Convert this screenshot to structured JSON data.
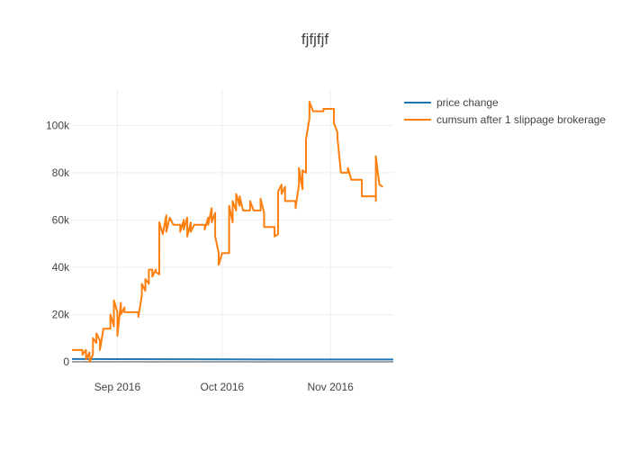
{
  "chart_data": {
    "type": "line",
    "title": "fjfjfjf",
    "xlabel": "",
    "ylabel": "",
    "x_axis": {
      "type": "date",
      "range": [
        "2016-08-19",
        "2016-11-19"
      ],
      "ticks": [
        {
          "date": "2016-09-01",
          "label": "Sep 2016"
        },
        {
          "date": "2016-10-01",
          "label": "Oct 2016"
        },
        {
          "date": "2016-11-01",
          "label": "Nov 2016"
        }
      ]
    },
    "y_axis": {
      "range": [
        0,
        115000
      ],
      "ticks": [
        {
          "value": 0,
          "label": "0"
        },
        {
          "value": 20000,
          "label": "20k"
        },
        {
          "value": 40000,
          "label": "40k"
        },
        {
          "value": 60000,
          "label": "60k"
        },
        {
          "value": 80000,
          "label": "80k"
        },
        {
          "value": 100000,
          "label": "100k"
        }
      ]
    },
    "grid": true,
    "legend_position": "top-right",
    "series": [
      {
        "name": "price change",
        "color": "#1f77b4",
        "points": [
          [
            "2016-08-19",
            1200
          ],
          [
            "2016-09-15",
            1100
          ],
          [
            "2016-10-15",
            1000
          ],
          [
            "2016-11-19",
            1000
          ]
        ]
      },
      {
        "name": "cumsum after 1 slippage brokerage",
        "color": "#ff7f0e",
        "points": [
          [
            "2016-08-19",
            5000
          ],
          [
            "2016-08-22",
            5000
          ],
          [
            "2016-08-22",
            3000
          ],
          [
            "2016-08-23",
            5000
          ],
          [
            "2016-08-23",
            1000
          ],
          [
            "2016-08-24",
            4000
          ],
          [
            "2016-08-24",
            0
          ],
          [
            "2016-08-25",
            3000
          ],
          [
            "2016-08-25",
            10000
          ],
          [
            "2016-08-26",
            8000
          ],
          [
            "2016-08-26",
            12000
          ],
          [
            "2016-08-27",
            9000
          ],
          [
            "2016-08-27",
            5000
          ],
          [
            "2016-08-28",
            14000
          ],
          [
            "2016-08-30",
            14000
          ],
          [
            "2016-08-30",
            20000
          ],
          [
            "2016-08-31",
            15000
          ],
          [
            "2016-08-31",
            26000
          ],
          [
            "2016-09-01",
            21000
          ],
          [
            "2016-09-01",
            11000
          ],
          [
            "2016-09-02",
            25000
          ],
          [
            "2016-09-02",
            20000
          ],
          [
            "2016-09-03",
            23000
          ],
          [
            "2016-09-03",
            21000
          ],
          [
            "2016-09-07",
            21000
          ],
          [
            "2016-09-07",
            19000
          ],
          [
            "2016-09-08",
            28000
          ],
          [
            "2016-09-08",
            33000
          ],
          [
            "2016-09-09",
            30000
          ],
          [
            "2016-09-09",
            35000
          ],
          [
            "2016-09-10",
            33000
          ],
          [
            "2016-09-10",
            39000
          ],
          [
            "2016-09-11",
            39000
          ],
          [
            "2016-09-11",
            36000
          ],
          [
            "2016-09-12",
            39000
          ],
          [
            "2016-09-12",
            38000
          ],
          [
            "2016-09-13",
            37000
          ],
          [
            "2016-09-13",
            59000
          ],
          [
            "2016-09-14",
            54000
          ],
          [
            "2016-09-15",
            62000
          ],
          [
            "2016-09-15",
            55000
          ],
          [
            "2016-09-16",
            61000
          ],
          [
            "2016-09-17",
            58000
          ],
          [
            "2016-09-19",
            58000
          ],
          [
            "2016-09-19",
            55000
          ],
          [
            "2016-09-20",
            60000
          ],
          [
            "2016-09-20",
            56000
          ],
          [
            "2016-09-21",
            61000
          ],
          [
            "2016-09-21",
            53000
          ],
          [
            "2016-09-22",
            59000
          ],
          [
            "2016-09-22",
            55000
          ],
          [
            "2016-09-23",
            58000
          ],
          [
            "2016-09-26",
            58000
          ],
          [
            "2016-09-26",
            56000
          ],
          [
            "2016-09-27",
            61000
          ],
          [
            "2016-09-27",
            58000
          ],
          [
            "2016-09-28",
            65000
          ],
          [
            "2016-09-28",
            59000
          ],
          [
            "2016-09-29",
            63000
          ],
          [
            "2016-09-29",
            53000
          ],
          [
            "2016-09-30",
            46000
          ],
          [
            "2016-09-30",
            41000
          ],
          [
            "2016-10-01",
            46000
          ],
          [
            "2016-10-03",
            46000
          ],
          [
            "2016-10-03",
            66000
          ],
          [
            "2016-10-04",
            59000
          ],
          [
            "2016-10-04",
            68000
          ],
          [
            "2016-10-05",
            64000
          ],
          [
            "2016-10-05",
            71000
          ],
          [
            "2016-10-06",
            66000
          ],
          [
            "2016-10-06",
            70000
          ],
          [
            "2016-10-07",
            64000
          ],
          [
            "2016-10-09",
            64000
          ],
          [
            "2016-10-09",
            68000
          ],
          [
            "2016-10-10",
            64000
          ],
          [
            "2016-10-12",
            64000
          ],
          [
            "2016-10-12",
            69000
          ],
          [
            "2016-10-13",
            63000
          ],
          [
            "2016-10-13",
            57000
          ],
          [
            "2016-10-16",
            57000
          ],
          [
            "2016-10-16",
            53000
          ],
          [
            "2016-10-17",
            54000
          ],
          [
            "2016-10-17",
            72000
          ],
          [
            "2016-10-18",
            75000
          ],
          [
            "2016-10-18",
            71000
          ],
          [
            "2016-10-19",
            74000
          ],
          [
            "2016-10-19",
            68000
          ],
          [
            "2016-10-22",
            68000
          ],
          [
            "2016-10-22",
            65000
          ],
          [
            "2016-10-23",
            75000
          ],
          [
            "2016-10-23",
            82000
          ],
          [
            "2016-10-24",
            73000
          ],
          [
            "2016-10-24",
            81000
          ],
          [
            "2016-10-25",
            80000
          ],
          [
            "2016-10-25",
            94000
          ],
          [
            "2016-10-26",
            103000
          ],
          [
            "2016-10-26",
            110000
          ],
          [
            "2016-10-27",
            106000
          ],
          [
            "2016-10-30",
            106000
          ],
          [
            "2016-10-30",
            107000
          ],
          [
            "2016-11-01",
            107000
          ],
          [
            "2016-11-02",
            107000
          ],
          [
            "2016-11-02",
            101000
          ],
          [
            "2016-11-03",
            97000
          ],
          [
            "2016-11-03",
            95000
          ],
          [
            "2016-11-04",
            80000
          ],
          [
            "2016-11-06",
            80000
          ],
          [
            "2016-11-06",
            82000
          ],
          [
            "2016-11-07",
            77000
          ],
          [
            "2016-11-10",
            77000
          ],
          [
            "2016-11-10",
            70000
          ],
          [
            "2016-11-14",
            70000
          ],
          [
            "2016-11-14",
            68000
          ],
          [
            "2016-11-14",
            87000
          ],
          [
            "2016-11-15",
            75000
          ],
          [
            "2016-11-16",
            74000
          ]
        ]
      }
    ]
  }
}
